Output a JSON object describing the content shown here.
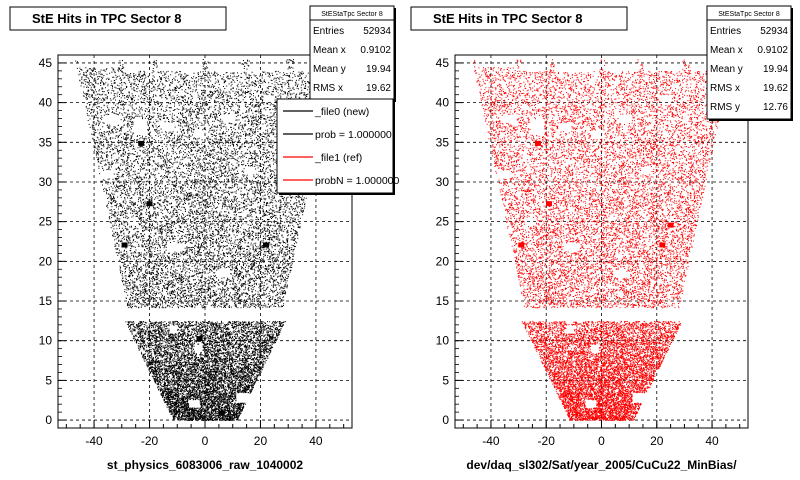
{
  "chart_data": [
    {
      "type": "scatter",
      "title": "StE Hits in TPC Sector 8",
      "xlabel": "st_physics_6083006_raw_1040002",
      "ylabel": "",
      "xlim": [
        -53,
        53
      ],
      "ylim": [
        -1,
        46
      ],
      "x_ticks": [
        "-40",
        "-20",
        "0",
        "20",
        "40"
      ],
      "y_ticks": [
        "0",
        "5",
        "10",
        "15",
        "20",
        "25",
        "30",
        "35",
        "40",
        "45"
      ],
      "grid": true,
      "marker_color": "#000000",
      "stats": {
        "header": "StEStaTpc Sector 8",
        "rows": [
          {
            "label": "Entries",
            "value": "52934"
          },
          {
            "label": "Mean x",
            "value": "0.9102"
          },
          {
            "label": "Mean y",
            "value": "19.94"
          },
          {
            "label": "RMS x",
            "value": "19.62"
          }
        ]
      },
      "legend": [
        {
          "label": "_file0 (new)",
          "color": "#000000"
        },
        {
          "label": "prob = 1.000000",
          "color": "#000000"
        },
        {
          "label": "_file1 (ref)",
          "color": "#ff0000"
        },
        {
          "label": "probN = 1.000000",
          "color": "#ff0000"
        }
      ]
    },
    {
      "type": "scatter",
      "title": "StE Hits in TPC Sector 8",
      "xlabel": "dev/daq_sl302/Sat/year_2005/CuCu22_MinBias/",
      "ylabel": "",
      "xlim": [
        -53,
        53
      ],
      "ylim": [
        -1,
        46
      ],
      "x_ticks": [
        "-40",
        "-20",
        "0",
        "20",
        "40"
      ],
      "y_ticks": [
        "0",
        "5",
        "10",
        "15",
        "20",
        "25",
        "30",
        "35",
        "40",
        "45"
      ],
      "grid": true,
      "marker_color": "#ff0000",
      "stats": {
        "header": "StEStaTpc Sector 8",
        "rows": [
          {
            "label": "Entries",
            "value": "52934"
          },
          {
            "label": "Mean x",
            "value": "0.9102"
          },
          {
            "label": "Mean y",
            "value": "19.94"
          },
          {
            "label": "RMS x",
            "value": "19.62"
          },
          {
            "label": "RMS y",
            "value": "12.76"
          }
        ]
      }
    }
  ]
}
